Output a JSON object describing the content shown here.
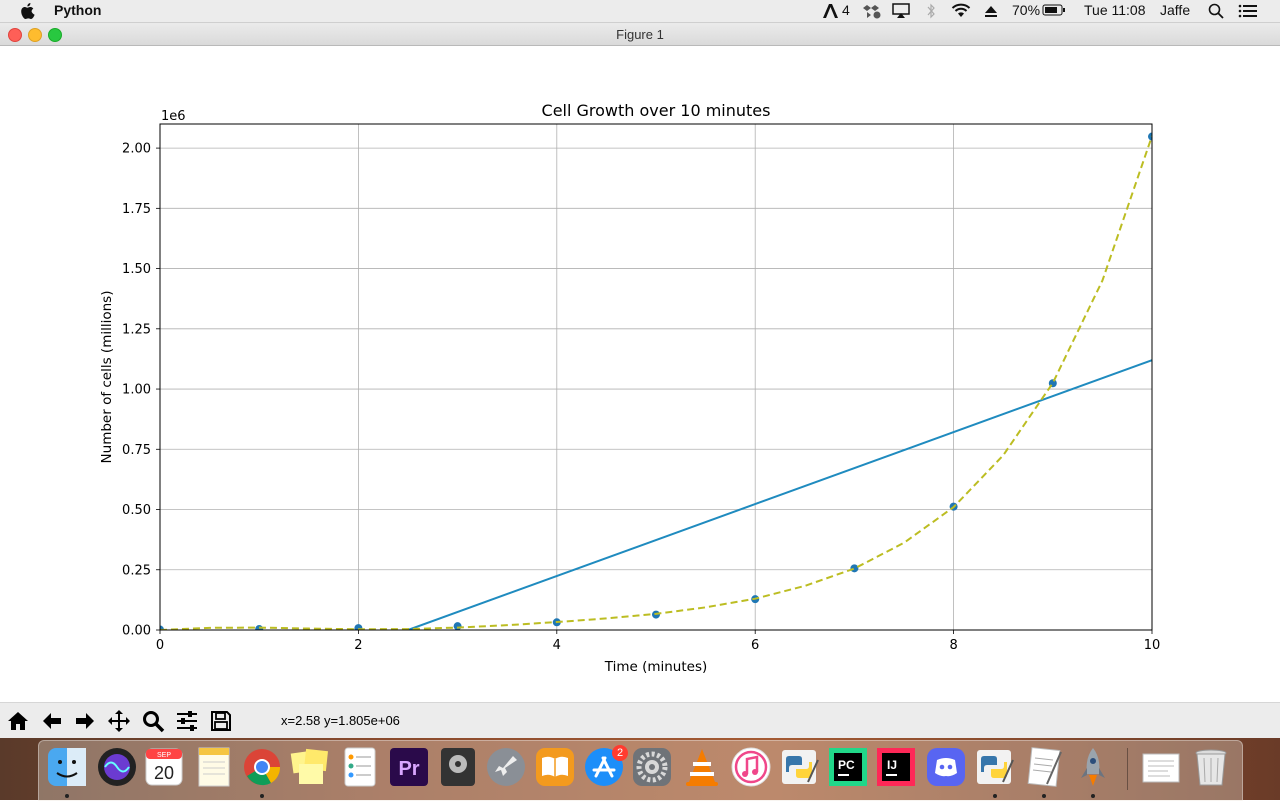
{
  "menubar": {
    "app_name": "Python",
    "adobe_count": "4",
    "battery": "70%",
    "clock": "Tue 11:08",
    "user": "Jaffe"
  },
  "window": {
    "title": "Figure 1"
  },
  "toolbar": {
    "buttons": [
      "home-icon",
      "back-arrow-icon",
      "forward-arrow-icon",
      "pan-icon",
      "zoom-icon",
      "configure-subplots-icon",
      "save-icon"
    ],
    "coords": "x=2.58 y=1.805e+06"
  },
  "dock": {
    "calendar_month": "SEP",
    "calendar_day": "20",
    "app_store_badge": "2",
    "apps": [
      "Finder",
      "Siri",
      "Calendar",
      "Notes",
      "Chrome",
      "Stickies",
      "Reminders",
      "Premiere Pro",
      "Logic",
      "Launchpad",
      "Books",
      "App Store",
      "System Preferences",
      "VLC",
      "iTunes",
      "Python Launcher",
      "PyCharm",
      "IntelliJ IDEA",
      "Discord",
      "Python Launcher",
      "TextEdit",
      "Rocket",
      "Preview",
      "Trash"
    ]
  },
  "chart_data": {
    "type": "scatter",
    "title": "Cell Growth over 10 minutes",
    "xlabel": "Time (minutes)",
    "ylabel": "Number of cells (millions)",
    "y_offset_label": "1e6",
    "xlim": [
      0,
      10
    ],
    "ylim": [
      0,
      2100000
    ],
    "xticks": [
      0,
      2,
      4,
      6,
      8,
      10
    ],
    "xtick_labels": [
      "0",
      "2",
      "4",
      "6",
      "8",
      "10"
    ],
    "yticks": [
      0,
      250000,
      500000,
      750000,
      1000000,
      1250000,
      1500000,
      1750000,
      2000000
    ],
    "ytick_labels": [
      "0.00",
      "0.25",
      "0.50",
      "0.75",
      "1.00",
      "1.25",
      "1.50",
      "1.75",
      "2.00"
    ],
    "grid": true,
    "series": [
      {
        "kind": "scatter",
        "color": "#1f77b4",
        "x": [
          0,
          1,
          2,
          3,
          4,
          5,
          6,
          7,
          8,
          9,
          10
        ],
        "y": [
          2000,
          4000,
          8000,
          16000,
          32000,
          64000,
          128000,
          256000,
          512000,
          1024000,
          2048000
        ]
      },
      {
        "kind": "line",
        "color": "#1f8bbf",
        "style": "solid",
        "x": [
          2.5,
          10
        ],
        "y": [
          0,
          1120000
        ]
      },
      {
        "kind": "line",
        "color": "#bcbd22",
        "style": "dashed",
        "x": [
          0,
          0.5,
          1,
          1.5,
          2,
          2.5,
          3,
          3.5,
          4,
          4.5,
          5,
          5.5,
          6,
          6.5,
          7,
          7.5,
          8,
          8.5,
          9,
          9.5,
          10
        ],
        "y": [
          0,
          9000,
          10000,
          6000,
          3000,
          4000,
          10000,
          20000,
          33000,
          48000,
          67000,
          94000,
          130000,
          183000,
          255000,
          362000,
          510000,
          725000,
          1025000,
          1450000,
          2050000
        ]
      }
    ]
  }
}
